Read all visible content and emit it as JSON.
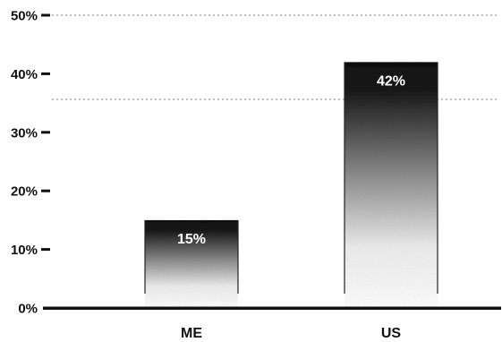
{
  "chart_data": {
    "type": "bar",
    "title": "",
    "xlabel": "",
    "ylabel": "",
    "categories": [
      "ME",
      "US"
    ],
    "values": [
      15,
      42
    ],
    "value_labels": [
      "15%",
      "42%"
    ],
    "ylim": [
      0,
      50
    ],
    "y_ticks": [
      0,
      10,
      20,
      30,
      40,
      50
    ],
    "y_tick_labels": [
      "0%",
      "10%",
      "20%",
      "30%",
      "40%",
      "50%"
    ],
    "grid": false,
    "legend": "none",
    "colors": {
      "bar_top": "#111111",
      "bar_bottom": "#ffffff",
      "axis": "#111111",
      "dotted_line": "#9a9a9a",
      "data_label": "#ffffff"
    }
  }
}
